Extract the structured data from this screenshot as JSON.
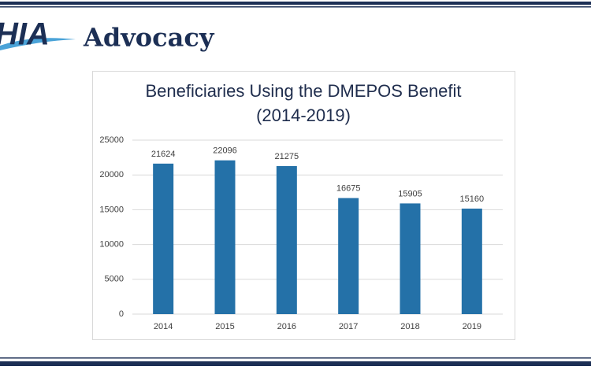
{
  "header": {
    "logo": "HIA",
    "brand": "Advocacy"
  },
  "chart_data": {
    "type": "bar",
    "title": "Beneficiaries Using the DMEPOS Benefit",
    "subtitle": "(2014-2019)",
    "categories": [
      "2014",
      "2015",
      "2016",
      "2017",
      "2018",
      "2019"
    ],
    "values": [
      21624,
      22096,
      21275,
      16675,
      15905,
      15160
    ],
    "color": "#2471a8",
    "ylim": [
      0,
      25000
    ],
    "yticks": [
      0,
      5000,
      10000,
      15000,
      20000,
      25000
    ],
    "grid": true
  }
}
